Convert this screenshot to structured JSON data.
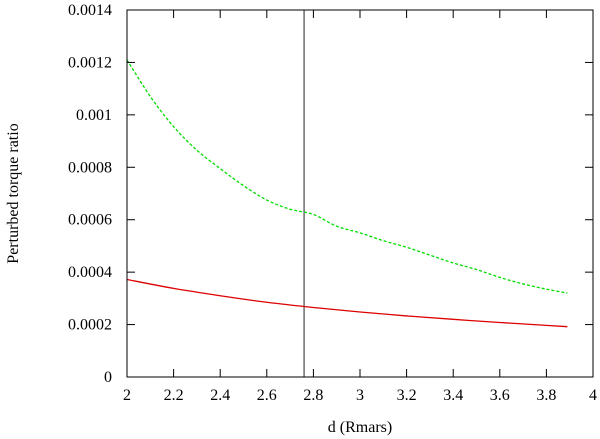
{
  "chart_data": {
    "type": "line",
    "title": "",
    "xlabel": "d (Rmars)",
    "ylabel": "Perturbed torque ratio",
    "xlim": [
      2,
      4
    ],
    "ylim": [
      0,
      0.0014
    ],
    "xticks": [
      2,
      2.2,
      2.4,
      2.6,
      2.8,
      3,
      3.2,
      3.4,
      3.6,
      3.8,
      4
    ],
    "xtick_labels": [
      "2",
      "2.2",
      "2.4",
      "2.6",
      "2.8",
      "3",
      "3.2",
      "3.4",
      "3.6",
      "3.8",
      "4"
    ],
    "yticks": [
      0,
      0.0002,
      0.0004,
      0.0006,
      0.0008,
      0.001,
      0.0012,
      0.0014
    ],
    "ytick_labels": [
      "0",
      "0.0002",
      "0.0004",
      "0.0006",
      "0.0008",
      "0.001",
      "0.0012",
      "0.0014"
    ],
    "grid": false,
    "legend": "none",
    "vertical_line": {
      "x": 2.76,
      "color": "#555555"
    },
    "series": [
      {
        "color": "#00dd00",
        "style": "dashed",
        "x": [
          2.0,
          2.1,
          2.2,
          2.3,
          2.4,
          2.5,
          2.6,
          2.7,
          2.8,
          2.9,
          3.0,
          3.1,
          3.2,
          3.3,
          3.4,
          3.5,
          3.6,
          3.7,
          3.8,
          3.89
        ],
        "y": [
          0.00121,
          0.00107,
          0.000955,
          0.000865,
          0.000795,
          0.00073,
          0.000675,
          0.00064,
          0.00062,
          0.000575,
          0.00055,
          0.00052,
          0.000495,
          0.000465,
          0.000435,
          0.00041,
          0.00038,
          0.000355,
          0.000335,
          0.00032
        ]
      },
      {
        "color": "#dd0000",
        "style": "solid",
        "x": [
          2.0,
          2.2,
          2.4,
          2.6,
          2.8,
          3.0,
          3.2,
          3.4,
          3.6,
          3.8,
          3.89
        ],
        "y": [
          0.000372,
          0.000338,
          0.00031,
          0.000285,
          0.000265,
          0.000248,
          0.000233,
          0.00022,
          0.000208,
          0.000197,
          0.000192
        ]
      }
    ]
  }
}
